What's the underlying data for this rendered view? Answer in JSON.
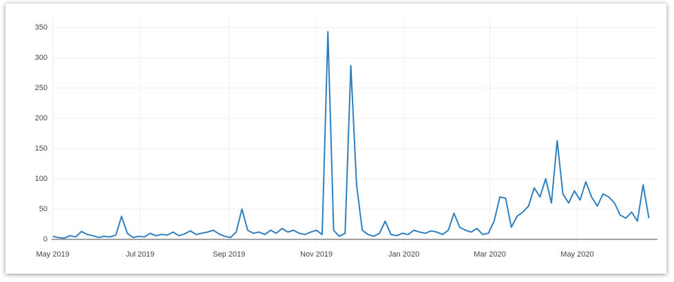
{
  "chart_data": {
    "type": "line",
    "series": [
      {
        "color": "#2e7fbf",
        "values": [
          5,
          3,
          2,
          6,
          4,
          13,
          8,
          6,
          3,
          5,
          4,
          7,
          38,
          10,
          3,
          5,
          4,
          10,
          6,
          8,
          7,
          12,
          6,
          9,
          14,
          8,
          10,
          12,
          15,
          9,
          5,
          3,
          12,
          50,
          15,
          10,
          12,
          8,
          15,
          10,
          18,
          12,
          15,
          10,
          8,
          12,
          15,
          8,
          343,
          15,
          5,
          10,
          287,
          90,
          15,
          8,
          5,
          10,
          30,
          8,
          6,
          10,
          8,
          15,
          12,
          10,
          14,
          12,
          8,
          15,
          43,
          20,
          15,
          12,
          18,
          8,
          10,
          30,
          70,
          68,
          20,
          38,
          45,
          55,
          85,
          70,
          100,
          60,
          163,
          75,
          60,
          80,
          65,
          95,
          70,
          55,
          75,
          70,
          60,
          40,
          35,
          45,
          30,
          90,
          35
        ]
      }
    ],
    "xlim": [
      -0.2,
      105.5
    ],
    "xticks": [
      {
        "value": 0,
        "label": "May 2019"
      },
      {
        "value": 15.25,
        "label": "Jul 2019"
      },
      {
        "value": 30.75,
        "label": "Sep 2019"
      },
      {
        "value": 46,
        "label": "Nov 2019"
      },
      {
        "value": 61.25,
        "label": "Jan 2020"
      },
      {
        "value": 76.25,
        "label": "Mar 2020"
      },
      {
        "value": 91.5,
        "label": "May 2020"
      }
    ],
    "ylim": [
      -8,
      367
    ],
    "yticks": [
      0,
      50,
      100,
      150,
      200,
      250,
      300,
      350
    ],
    "grid": true
  }
}
